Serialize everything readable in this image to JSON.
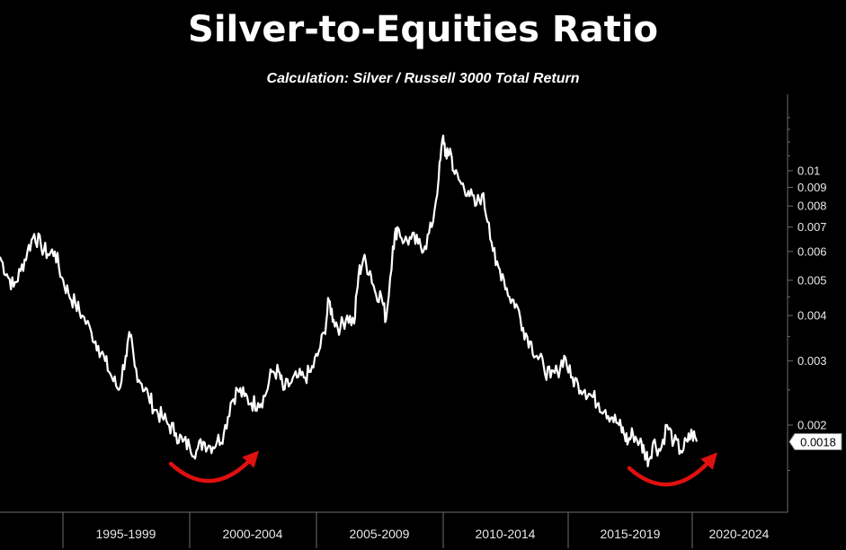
{
  "title": "Silver-to-Equities Ratio",
  "subtitle": "Calculation: Silver / Russell 3000 Total Return",
  "colors": {
    "background": "#000000",
    "line": "#ffffff",
    "arrow": "#e01010",
    "axis": "#6b6b6b",
    "badge_bg": "#ffffff",
    "badge_text": "#000000"
  },
  "chart_data": {
    "type": "line",
    "title": "Silver-to-Equities Ratio",
    "subtitle": "Calculation: Silver / Russell 3000 Total Return",
    "y_scale": "log",
    "ylim": [
      0.00145,
      0.0155
    ],
    "xlim": [
      1991.8,
      2024.6
    ],
    "y_ticks": [
      0.002,
      0.003,
      0.004,
      0.005,
      0.006,
      0.007,
      0.008,
      0.009,
      0.01
    ],
    "y_tick_labels": [
      "0.002",
      "0.003",
      "0.004",
      "0.005",
      "0.006",
      "0.007",
      "0.008",
      "0.009",
      "0.01"
    ],
    "x_tick_labels": [
      "1995-1999",
      "2000-2004",
      "2005-2009",
      "2010-2014",
      "2015-2019",
      "2020-2024"
    ],
    "last_value_label": "0.0018",
    "grid": false,
    "series": [
      {
        "values": [
          [
            1991.8,
            0.0058
          ],
          [
            1992.1,
            0.0052
          ],
          [
            1992.4,
            0.0048
          ],
          [
            1992.7,
            0.0053
          ],
          [
            1993.0,
            0.006
          ],
          [
            1993.3,
            0.0067
          ],
          [
            1993.6,
            0.0062
          ],
          [
            1993.9,
            0.0059
          ],
          [
            1994.2,
            0.006
          ],
          [
            1994.5,
            0.0051
          ],
          [
            1994.8,
            0.0046
          ],
          [
            1995.1,
            0.0043
          ],
          [
            1995.4,
            0.004
          ],
          [
            1995.8,
            0.0036
          ],
          [
            1996.1,
            0.0033
          ],
          [
            1996.4,
            0.003
          ],
          [
            1996.7,
            0.0027
          ],
          [
            1997.0,
            0.0025
          ],
          [
            1997.3,
            0.0031
          ],
          [
            1997.5,
            0.0035
          ],
          [
            1997.7,
            0.0029
          ],
          [
            1998.0,
            0.0026
          ],
          [
            1998.3,
            0.0024
          ],
          [
            1998.6,
            0.0022
          ],
          [
            1998.9,
            0.0021
          ],
          [
            1999.2,
            0.002
          ],
          [
            1999.5,
            0.0019
          ],
          [
            1999.8,
            0.0018
          ],
          [
            2000.1,
            0.00175
          ],
          [
            2000.4,
            0.0017
          ],
          [
            2000.7,
            0.0018
          ],
          [
            2001.0,
            0.00175
          ],
          [
            2001.3,
            0.0018
          ],
          [
            2001.6,
            0.0019
          ],
          [
            2001.9,
            0.0023
          ],
          [
            2002.2,
            0.0025
          ],
          [
            2002.5,
            0.0024
          ],
          [
            2002.8,
            0.0023
          ],
          [
            2003.1,
            0.0023
          ],
          [
            2003.4,
            0.0024
          ],
          [
            2003.7,
            0.0028
          ],
          [
            2004.0,
            0.0028
          ],
          [
            2004.2,
            0.0025
          ],
          [
            2004.5,
            0.0026
          ],
          [
            2004.8,
            0.0027
          ],
          [
            2005.1,
            0.0027
          ],
          [
            2005.4,
            0.0028
          ],
          [
            2005.7,
            0.0031
          ],
          [
            2006.0,
            0.0036
          ],
          [
            2006.2,
            0.0044
          ],
          [
            2006.4,
            0.0039
          ],
          [
            2006.7,
            0.0037
          ],
          [
            2007.0,
            0.004
          ],
          [
            2007.3,
            0.0038
          ],
          [
            2007.5,
            0.0052
          ],
          [
            2007.7,
            0.0057
          ],
          [
            2008.0,
            0.0053
          ],
          [
            2008.2,
            0.0047
          ],
          [
            2008.5,
            0.0045
          ],
          [
            2008.7,
            0.0039
          ],
          [
            2009.0,
            0.0062
          ],
          [
            2009.2,
            0.007
          ],
          [
            2009.5,
            0.0064
          ],
          [
            2009.8,
            0.0065
          ],
          [
            2010.1,
            0.0063
          ],
          [
            2010.4,
            0.0062
          ],
          [
            2010.7,
            0.007
          ],
          [
            2011.0,
            0.0095
          ],
          [
            2011.2,
            0.0125
          ],
          [
            2011.35,
            0.0108
          ],
          [
            2011.5,
            0.0115
          ],
          [
            2011.7,
            0.0098
          ],
          [
            2012.0,
            0.0092
          ],
          [
            2012.3,
            0.0088
          ],
          [
            2012.6,
            0.008
          ],
          [
            2012.9,
            0.0086
          ],
          [
            2013.2,
            0.0072
          ],
          [
            2013.5,
            0.0055
          ],
          [
            2013.8,
            0.0052
          ],
          [
            2014.1,
            0.0045
          ],
          [
            2014.4,
            0.0043
          ],
          [
            2014.7,
            0.0037
          ],
          [
            2015.0,
            0.0034
          ],
          [
            2015.3,
            0.0031
          ],
          [
            2015.6,
            0.0029
          ],
          [
            2015.9,
            0.0027
          ],
          [
            2016.2,
            0.0028
          ],
          [
            2016.5,
            0.0031
          ],
          [
            2016.8,
            0.0027
          ],
          [
            2017.1,
            0.0026
          ],
          [
            2017.4,
            0.0025
          ],
          [
            2017.7,
            0.0024
          ],
          [
            2018.0,
            0.0023
          ],
          [
            2018.3,
            0.0022
          ],
          [
            2018.6,
            0.0021
          ],
          [
            2018.9,
            0.002
          ],
          [
            2019.1,
            0.0019
          ],
          [
            2019.3,
            0.0018
          ],
          [
            2019.5,
            0.0019
          ],
          [
            2019.8,
            0.0018
          ],
          [
            2020.0,
            0.0017
          ],
          [
            2020.2,
            0.0016
          ],
          [
            2020.4,
            0.0018
          ],
          [
            2020.7,
            0.0017
          ],
          [
            2021.0,
            0.002
          ],
          [
            2021.3,
            0.0018
          ],
          [
            2021.6,
            0.0017
          ],
          [
            2021.9,
            0.0018
          ],
          [
            2022.1,
            0.0019
          ],
          [
            2022.3,
            0.0018
          ]
        ]
      }
    ]
  }
}
